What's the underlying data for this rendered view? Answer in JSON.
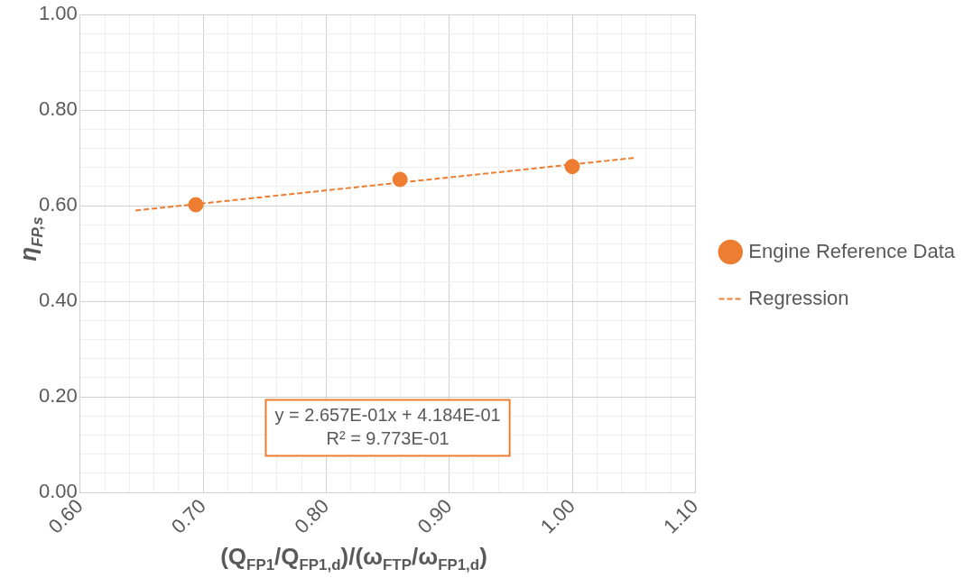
{
  "chart_data": {
    "type": "scatter",
    "xlabel": "(Q$_{FP1}$/Q$_{FP1,d}$)/(ω$_{FTP}$/ω$_{FP1,d}$)",
    "ylabel": "η$_{FP,s}$",
    "series": [
      {
        "name": "Engine Reference Data",
        "type": "scatter",
        "color": "#ed7d31",
        "marker": "circle",
        "x": [
          0.694,
          0.86,
          1.0
        ],
        "values": [
          0.602,
          0.655,
          0.682
        ]
      },
      {
        "name": "Regression",
        "type": "line",
        "color": "#ed7d31",
        "marker": "none",
        "line_style": "dashed",
        "x": [
          0.645,
          1.05
        ],
        "values": [
          0.59,
          0.7
        ]
      }
    ],
    "xlim": [
      0.6,
      1.1
    ],
    "xticks": [
      {
        "value": 0.6,
        "label": "0.60"
      },
      {
        "value": 0.62,
        "label": null
      },
      {
        "value": 0.64,
        "label": null
      },
      {
        "value": 0.66,
        "label": null
      },
      {
        "value": 0.68,
        "label": null
      },
      {
        "value": 0.7,
        "label": "0.70"
      },
      {
        "value": 0.72,
        "label": null
      },
      {
        "value": 0.74,
        "label": null
      },
      {
        "value": 0.76,
        "label": null
      },
      {
        "value": 0.78,
        "label": null
      },
      {
        "value": 0.8,
        "label": "0.80"
      },
      {
        "value": 0.82,
        "label": null
      },
      {
        "value": 0.84,
        "label": null
      },
      {
        "value": 0.86,
        "label": null
      },
      {
        "value": 0.88,
        "label": null
      },
      {
        "value": 0.9,
        "label": "0.90"
      },
      {
        "value": 0.92,
        "label": null
      },
      {
        "value": 0.94,
        "label": null
      },
      {
        "value": 0.96,
        "label": null
      },
      {
        "value": 0.98,
        "label": null
      },
      {
        "value": 1.0,
        "label": "1.00"
      },
      {
        "value": 1.02,
        "label": null
      },
      {
        "value": 1.04,
        "label": null
      },
      {
        "value": 1.06,
        "label": null
      },
      {
        "value": 1.08,
        "label": null
      },
      {
        "value": 1.1,
        "label": "1.10"
      }
    ],
    "ylim": [
      0,
      1
    ],
    "yticks": [
      {
        "value": 0,
        "label": "0.00"
      },
      {
        "value": 0.04,
        "label": null
      },
      {
        "value": 0.08,
        "label": null
      },
      {
        "value": 0.12,
        "label": null
      },
      {
        "value": 0.16,
        "label": null
      },
      {
        "value": 0.2,
        "label": "0.20"
      },
      {
        "value": 0.24,
        "label": null
      },
      {
        "value": 0.28,
        "label": null
      },
      {
        "value": 0.32,
        "label": null
      },
      {
        "value": 0.36,
        "label": null
      },
      {
        "value": 0.4,
        "label": "0.40"
      },
      {
        "value": 0.44,
        "label": null
      },
      {
        "value": 0.48,
        "label": null
      },
      {
        "value": 0.52,
        "label": null
      },
      {
        "value": 0.56,
        "label": null
      },
      {
        "value": 0.6,
        "label": "0.60"
      },
      {
        "value": 0.64,
        "label": null
      },
      {
        "value": 0.68,
        "label": null
      },
      {
        "value": 0.72,
        "label": null
      },
      {
        "value": 0.76,
        "label": null
      },
      {
        "value": 0.8,
        "label": "0.80"
      },
      {
        "value": 0.84,
        "label": null
      },
      {
        "value": 0.88,
        "label": null
      },
      {
        "value": 0.92,
        "label": null
      },
      {
        "value": 0.96,
        "label": null
      },
      {
        "value": 1.0,
        "label": "1.00"
      }
    ],
    "grid": true,
    "legend": "right",
    "annotations": [
      "y = 2.657E-01x + 4.184E-01\nR² = 9.773E-01"
    ]
  }
}
